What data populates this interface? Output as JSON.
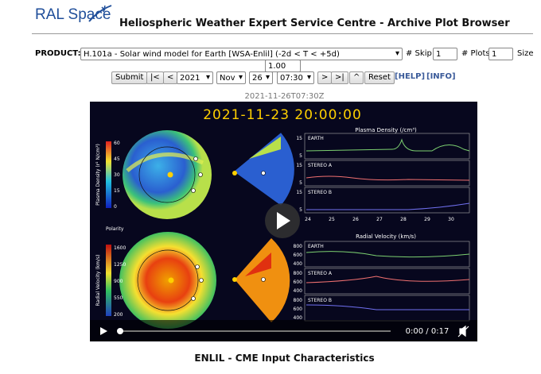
{
  "header": {
    "logo": "RAL Space",
    "title": "Heliospheric Weather Expert Service Centre - Archive Plot Browser"
  },
  "form": {
    "product_label": "PRODUCT:",
    "product": "H.101a - Solar wind model for Earth [WSA-Enlil] (-2d < T < +5d)",
    "skip_label": "# Skip",
    "skip": "1",
    "plots_label": "# Plots",
    "plots": "1",
    "size_label": "Size",
    "size": "1.00"
  },
  "nav": {
    "submit": "Submit",
    "first": "|<",
    "prev": "<",
    "year": "2021",
    "month": "Nov",
    "day": "26",
    "time": "07:30",
    "next": ">",
    "last": ">|",
    "up": "^",
    "reset": "Reset",
    "help": "[HELP]",
    "info": "[INFO]"
  },
  "plot": {
    "timestamp": "2021-11-26T07:30Z",
    "video": {
      "frame_time": "2021-11-23 20:00:00",
      "density_title": "Plasma Density (/cm³)",
      "velocity_title": "Radial Velocity (km/s)",
      "panels": [
        "EARTH",
        "STEREO A",
        "STEREO B"
      ],
      "density_colorbar": {
        "label": "Plasma Density (r² N/cm³)",
        "ticks": [
          "60",
          "45",
          "30",
          "15",
          "0"
        ]
      },
      "velocity_colorbar": {
        "label": "Radial Velocity (km/s)",
        "ticks": [
          "1600",
          "1250",
          "900",
          "550",
          "200"
        ]
      },
      "polarity": "Polarity",
      "days": [
        "24",
        "25",
        "26",
        "27",
        "28",
        "29",
        "30"
      ],
      "density_ticks": [
        "15",
        "5"
      ],
      "velocity_ticks": [
        "800",
        "600",
        "400"
      ],
      "time": "0:00 / 0:17"
    }
  },
  "section_title": "ENLIL - CME Input Characteristics"
}
